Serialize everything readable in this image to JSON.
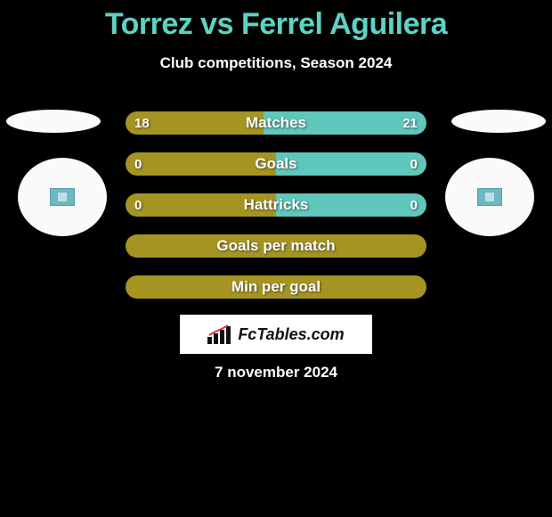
{
  "title": "Torrez vs Ferrel Aguilera",
  "subtitle": "Club competitions, Season 2024",
  "date": "7 november 2024",
  "brand": "FcTables.com",
  "colors": {
    "title": "#5dd2c5",
    "olive": "#a59421",
    "teal": "#5fc7bb",
    "white": "#ffffff",
    "black": "#000000"
  },
  "bars": [
    {
      "label": "Matches",
      "left_value": "18",
      "right_value": "21",
      "left_color": "#a59421",
      "right_color": "#5fc7bb",
      "left_pct": 46,
      "right_pct": 54
    },
    {
      "label": "Goals",
      "left_value": "0",
      "right_value": "0",
      "left_color": "#a59421",
      "right_color": "#5fc7bb",
      "left_pct": 50,
      "right_pct": 50
    },
    {
      "label": "Hattricks",
      "left_value": "0",
      "right_value": "0",
      "left_color": "#a59421",
      "right_color": "#5fc7bb",
      "left_pct": 50,
      "right_pct": 50
    },
    {
      "label": "Goals per match",
      "left_value": "",
      "right_value": "",
      "left_color": "#a59421",
      "right_color": "#a59421",
      "left_pct": 100,
      "right_pct": 0
    },
    {
      "label": "Min per goal",
      "left_value": "",
      "right_value": "",
      "left_color": "#a59421",
      "right_color": "#a59421",
      "left_pct": 100,
      "right_pct": 0
    }
  ]
}
